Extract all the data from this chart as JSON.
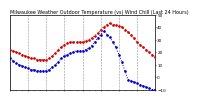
{
  "title": "Milwaukee Weather Outdoor Temperature (vs) Wind Chill (Last 24 Hours)",
  "title_fontsize": 3.5,
  "temp_color": "#cc0000",
  "windchill_color": "#0000cc",
  "background_color": "#ffffff",
  "ylim": [
    -10,
    50
  ],
  "ytick_values": [
    50,
    40,
    30,
    20,
    10,
    0,
    -10
  ],
  "ylabel_fontsize": 3.0,
  "xlabel_fontsize": 2.8,
  "n_points": 49,
  "temp": [
    22,
    21,
    20,
    19,
    18,
    17,
    16,
    15,
    15,
    14,
    14,
    14,
    14,
    15,
    17,
    19,
    22,
    24,
    26,
    27,
    28,
    28,
    28,
    28,
    28,
    29,
    30,
    31,
    33,
    35,
    38,
    40,
    42,
    43,
    42,
    42,
    41,
    40,
    38,
    36,
    34,
    31,
    28,
    26,
    24,
    22,
    20,
    18,
    16
  ],
  "windchill": [
    15,
    13,
    11,
    10,
    9,
    8,
    7,
    6,
    6,
    5,
    5,
    5,
    5,
    6,
    8,
    10,
    12,
    15,
    17,
    18,
    19,
    20,
    21,
    21,
    21,
    22,
    23,
    25,
    28,
    31,
    34,
    37,
    34,
    32,
    28,
    24,
    18,
    12,
    5,
    -2,
    -3,
    -4,
    -5,
    -6,
    -7,
    -8,
    -9,
    -10,
    -10
  ],
  "grid_color": "#888888",
  "tick_color": "#000000",
  "border_color": "#000000",
  "x_grid_positions": [
    0,
    6,
    12,
    18,
    24,
    30,
    36,
    42,
    48
  ]
}
